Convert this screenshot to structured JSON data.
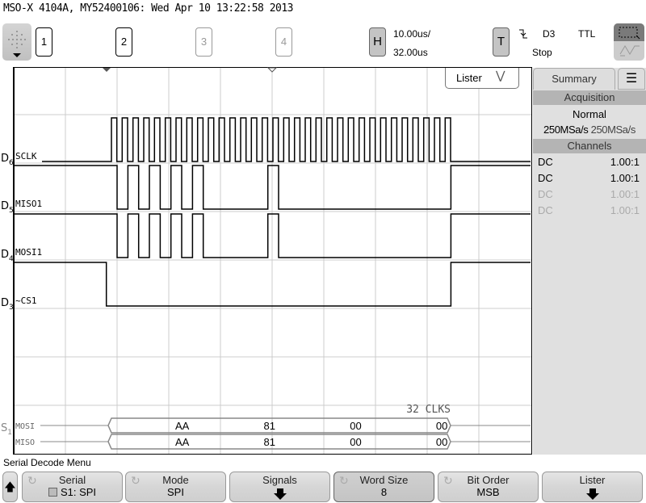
{
  "header": {
    "title": "MSO-X 4104A, MY52400106: Wed Apr 10 13:22:58 2013"
  },
  "channels": [
    {
      "label": "1",
      "active": true
    },
    {
      "label": "2",
      "active": true
    },
    {
      "label": "3",
      "active": false
    },
    {
      "label": "4",
      "active": false
    }
  ],
  "horizontal": {
    "button": "H",
    "scale": "10.00us/",
    "delay": "32.00us"
  },
  "trigger": {
    "button": "T",
    "edge_icon": "falling-edge-icon",
    "source": "D3",
    "level": "TTL",
    "status": "Stop"
  },
  "lister_dropdown": {
    "label": "Lister"
  },
  "traces": [
    {
      "label_prefix": "D",
      "label_sub": "6",
      "name": "SCLK"
    },
    {
      "label_prefix": "D",
      "label_sub": "5",
      "name": "MISO1"
    },
    {
      "label_prefix": "D",
      "label_sub": "4",
      "name": "MOSI1"
    },
    {
      "label_prefix": "D",
      "label_sub": "3",
      "name": "~CS1"
    }
  ],
  "decode": {
    "bus_prefix": "S",
    "bus_sub": "1",
    "clk_count": "32 CLKS",
    "rows": [
      {
        "name": "MOSI",
        "values": [
          "AA",
          "81",
          "00",
          "00"
        ]
      },
      {
        "name": "MISO",
        "values": [
          "AA",
          "81",
          "00",
          "00"
        ]
      }
    ]
  },
  "signal_data": {
    "clock_pulses": 32,
    "mosi_bytes": [
      "AA",
      "81",
      "00",
      "00"
    ],
    "miso_bytes": [
      "AA",
      "81",
      "00",
      "00"
    ],
    "idle_level": 1
  },
  "summary_panel": {
    "tab": "Summary",
    "acquisition_header": "Acquisition",
    "mode": "Normal",
    "rate1": "250MSa/s",
    "rate2": "250MSa/s",
    "channels_header": "Channels",
    "channel_rows": [
      {
        "coupling": "DC",
        "probe": "1.00:1",
        "active": true
      },
      {
        "coupling": "DC",
        "probe": "1.00:1",
        "active": true
      },
      {
        "coupling": "DC",
        "probe": "1.00:1",
        "active": false
      },
      {
        "coupling": "DC",
        "probe": "1.00:1",
        "active": false
      }
    ]
  },
  "menu": {
    "title": "Serial Decode Menu",
    "softkeys": [
      {
        "top": "Serial",
        "bottom": "S1: SPI"
      },
      {
        "top": "Mode",
        "bottom": "SPI"
      },
      {
        "top": "Signals",
        "bottom": ""
      },
      {
        "top": "Word Size",
        "bottom": "8"
      },
      {
        "top": "Bit Order",
        "bottom": "MSB"
      },
      {
        "top": "Lister",
        "bottom": ""
      }
    ]
  }
}
